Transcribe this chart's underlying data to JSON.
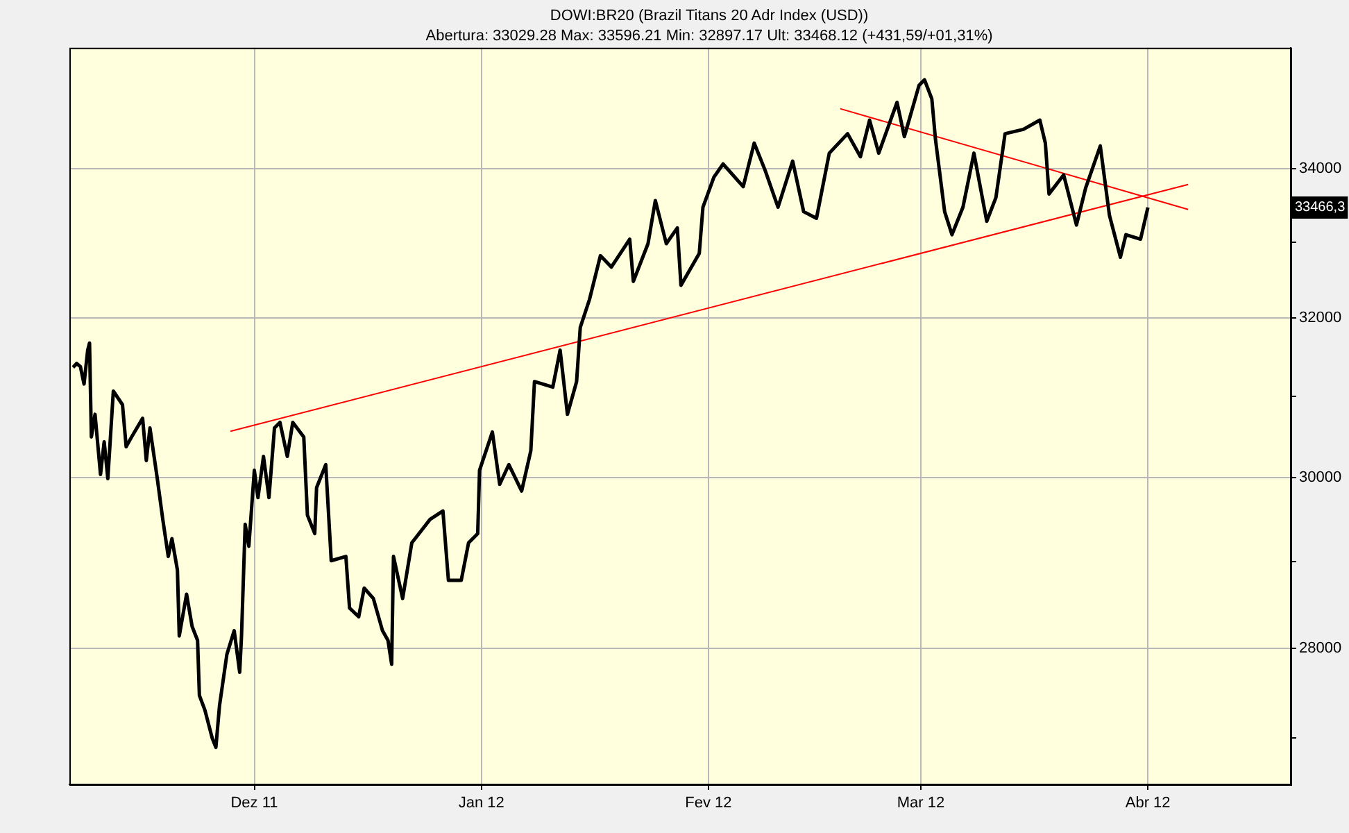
{
  "chart_data": {
    "type": "line",
    "title": "DOWI:BR20 (Brazil Titans 20 Adr Index (USD))",
    "subtitle": "Abertura: 33029.28 Max: 33596.21 Min: 32897.17 Ult: 33468.12 (+431,59/+01,31%)",
    "log": "y",
    "grid": true,
    "legend": false,
    "marker": "none",
    "line_style": "solid",
    "xlim": [
      "2011-11-05T18:00",
      "2012-04-20T12:00"
    ],
    "xticks": [
      {
        "value": "2011-12-01",
        "label": "Dez 11"
      },
      {
        "value": "2012-01-01",
        "label": "Jan 12"
      },
      {
        "value": "2012-02-01",
        "label": "Fev 12"
      },
      {
        "value": "2012-03-01",
        "label": "Mar 12"
      },
      {
        "value": "2012-04-01",
        "label": "Abr 12"
      }
    ],
    "ylim": [
      26500,
      35700
    ],
    "yticks": [
      {
        "value": 27000,
        "label": null
      },
      28000,
      {
        "value": 29000,
        "label": null
      },
      30000,
      {
        "value": 31000,
        "label": null
      },
      32000,
      {
        "value": 33000,
        "label": null
      },
      34000
    ],
    "annotations": [
      "33466,3"
    ],
    "series": [
      {
        "color": "#000000",
        "x": [
          "2011-11-06T06:00",
          "2011-11-06T18:00",
          "2011-11-07T06:00",
          "2011-11-07T18:00",
          "2011-11-08T06:00",
          "2011-11-08T12:00",
          "2011-11-08T18:00",
          "2011-11-09T06:00",
          "2011-11-10T00:00",
          "2011-11-10T12:00",
          "2011-11-11T00:00",
          "2011-11-11T18:00",
          "2011-11-13T00:00",
          "2011-11-13T12:00",
          "2011-11-14T06:00",
          "2011-11-15T18:00",
          "2011-11-16T06:00",
          "2011-11-16T18:00",
          "2011-11-17T18:00",
          "2011-11-18T12:00",
          "2011-11-19T06:00",
          "2011-11-19T18:00",
          "2011-11-20T12:00",
          "2011-11-20T18:00",
          "2011-11-21T18:00",
          "2011-11-22T12:00",
          "2011-11-23T06:00",
          "2011-11-23T12:00",
          "2011-11-24T06:00",
          "2011-11-25T06:00",
          "2011-11-25T18:00",
          "2011-11-26T06:00",
          "2011-11-27T06:00",
          "2011-11-28T06:00",
          "2011-11-29T00:00",
          "2011-11-29T06:00",
          "2011-11-29T18:00",
          "2011-11-30T06:00",
          "2011-12-01T00:00",
          "2011-12-01T12:00",
          "2011-12-02T06:00",
          "2011-12-03T00:00",
          "2011-12-03T18:00",
          "2011-12-04T12:00",
          "2011-12-05T12:00",
          "2011-12-06T06:00",
          "2011-12-07T18:00",
          "2011-12-08T06:00",
          "2011-12-09T06:00",
          "2011-12-09T12:00",
          "2011-12-10T18:00",
          "2011-12-11T12:00",
          "2011-12-13T12:00",
          "2011-12-14T00:00",
          "2011-12-15T06:00",
          "2011-12-16T00:00",
          "2011-12-17T06:00",
          "2011-12-18T12:00",
          "2011-12-19T06:00",
          "2011-12-19T18:00",
          "2011-12-20T00:00",
          "2011-12-21T06:00",
          "2011-12-22T12:00",
          "2011-12-25T00:00",
          "2011-12-26T18:00",
          "2011-12-27T12:00",
          "2011-12-29T06:00",
          "2011-12-30T06:00",
          "2011-12-31T12:00",
          "2011-12-31T18:00",
          "2012-01-02T12:00",
          "2012-01-03T12:00",
          "2012-01-04T18:00",
          "2012-01-06T12:00",
          "2012-01-07T18:00",
          "2012-01-08T06:00",
          "2012-01-10T18:00",
          "2012-01-11T18:00",
          "2012-01-12T18:00",
          "2012-01-14T00:00",
          "2012-01-14T12:00",
          "2012-01-15T18:00",
          "2012-01-17T06:00",
          "2012-01-18T18:00",
          "2012-01-21T06:00",
          "2012-01-21T18:00",
          "2012-01-23T18:00",
          "2012-01-24T18:00",
          "2012-01-26T06:00",
          "2012-01-27T18:00",
          "2012-01-28T06:00",
          "2012-01-30T18:00",
          "2012-01-31T06:00",
          "2012-02-01T18:00",
          "2012-02-03T00:00",
          "2012-02-05T18:00",
          "2012-02-07T06:00",
          "2012-02-08T18:00",
          "2012-02-10T12:00",
          "2012-02-12T12:00",
          "2012-02-14T00:00",
          "2012-02-15T18:00",
          "2012-02-17T12:00",
          "2012-02-20T00:00",
          "2012-02-21T18:00",
          "2012-02-23T00:00",
          "2012-02-24T06:00",
          "2012-02-26T18:00",
          "2012-02-27T18:00",
          "2012-02-29T18:00",
          "2012-03-01T12:00",
          "2012-03-02T12:00",
          "2012-03-03T00:00",
          "2012-03-04T06:00",
          "2012-03-05T06:00",
          "2012-03-06T18:00",
          "2012-03-08T06:00",
          "2012-03-10T00:00",
          "2012-03-11T06:00",
          "2012-03-12T12:00",
          "2012-03-15T00:00",
          "2012-03-17T06:00",
          "2012-03-18T00:00",
          "2012-03-18T12:00",
          "2012-03-20T12:00",
          "2012-03-22T06:00",
          "2012-03-23T12:00",
          "2012-03-25T12:00",
          "2012-03-26T18:00",
          "2012-03-28T06:00",
          "2012-03-29T00:00",
          "2012-03-31T00:00",
          "2012-04-01T00:00"
        ],
        "values": [
          31370,
          31420,
          31380,
          31160,
          31590,
          31680,
          30500,
          30780,
          30040,
          30440,
          29990,
          31070,
          30900,
          30380,
          30500,
          30730,
          30210,
          30610,
          29990,
          29500,
          29060,
          29270,
          28900,
          28140,
          28620,
          28250,
          28090,
          27470,
          27310,
          27000,
          26900,
          27360,
          27930,
          28200,
          27730,
          28140,
          29440,
          29180,
          30090,
          29760,
          30260,
          29760,
          30610,
          30680,
          30260,
          30680,
          30500,
          29550,
          29330,
          29880,
          30160,
          29010,
          29060,
          28460,
          28360,
          28690,
          28570,
          28200,
          28090,
          27820,
          29060,
          28570,
          29220,
          29500,
          29600,
          28780,
          28780,
          29220,
          29330,
          30090,
          30560,
          29920,
          30160,
          29840,
          30330,
          31190,
          31120,
          31590,
          30780,
          31190,
          31880,
          32240,
          32820,
          32670,
          33040,
          32480,
          32980,
          33560,
          32980,
          33190,
          32430,
          32850,
          33470,
          33880,
          34060,
          33750,
          34350,
          33970,
          33470,
          34100,
          33410,
          33320,
          34210,
          34480,
          34160,
          34670,
          34210,
          34920,
          34440,
          35160,
          35240,
          34970,
          34400,
          33410,
          33100,
          33470,
          34210,
          33280,
          33600,
          34480,
          34540,
          34670,
          34350,
          33650,
          33910,
          33230,
          33730,
          34310,
          33360,
          32800,
          33100,
          33040,
          33466
        ]
      },
      {
        "color": "#ff0000",
        "x": [
          "2011-11-27T18:00",
          "2012-04-06T12:00"
        ],
        "values": [
          30570,
          33780
        ]
      },
      {
        "color": "#ff0000",
        "x": [
          "2012-02-19T00:00",
          "2012-04-06T12:00"
        ],
        "values": [
          34830,
          33440
        ]
      }
    ]
  }
}
